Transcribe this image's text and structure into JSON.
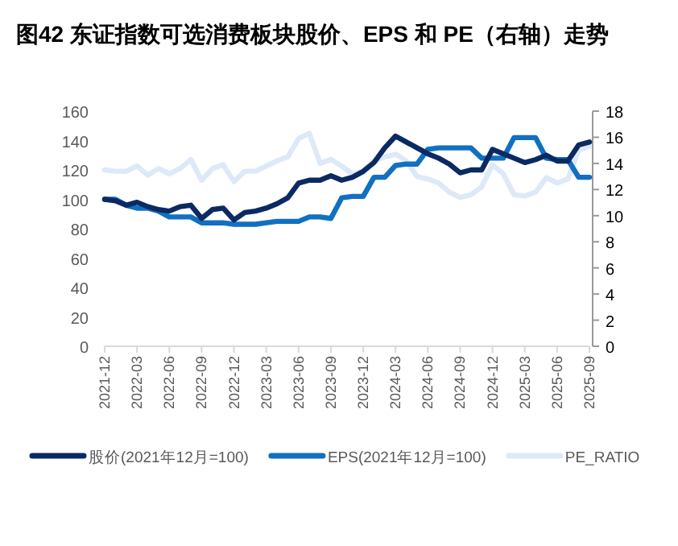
{
  "chart_data": {
    "type": "line",
    "title": "图42 东证指数可选消费板块股价、EPS 和 PE（右轴）走势",
    "categories": [
      "2021-12",
      null,
      null,
      "2022-03",
      null,
      null,
      "2022-06",
      null,
      null,
      "2022-09",
      null,
      null,
      "2022-12",
      null,
      null,
      "2023-03",
      null,
      null,
      "2023-06",
      null,
      null,
      "2023-09",
      null,
      null,
      "2023-12",
      null,
      null,
      "2024-03",
      null,
      null,
      "2024-06",
      null,
      null,
      "2024-09",
      null,
      null,
      "2024-12",
      null,
      null,
      "2025-03",
      null,
      null,
      "2025-06",
      null,
      null,
      "2025-09"
    ],
    "series": [
      {
        "name": "股价(2021年12月=100)",
        "color": "#0b2a63",
        "values": [
          100,
          99,
          96,
          98,
          95,
          93,
          92,
          95,
          96,
          87,
          93,
          94,
          86,
          91,
          92,
          94,
          97,
          101,
          111,
          113,
          113,
          116,
          113,
          115,
          119,
          125,
          135,
          143,
          139,
          135,
          131,
          128,
          124,
          118,
          120,
          120,
          134,
          131,
          128,
          125,
          127,
          130,
          126,
          126,
          137,
          139
        ]
      },
      {
        "name": "EPS(2021年12月=100)",
        "color": "#1170c0",
        "values": [
          100,
          100,
          96,
          94,
          94,
          92,
          88,
          88,
          88,
          84,
          84,
          84,
          83,
          83,
          83,
          84,
          85,
          85,
          85,
          88,
          88,
          87,
          101,
          102,
          102,
          115,
          115,
          123,
          124,
          124,
          134,
          135,
          135,
          135,
          135,
          128,
          128,
          128,
          142,
          142,
          142,
          128,
          127,
          127,
          115,
          115
        ]
      },
      {
        "name": "PE_RATIO",
        "color": "#dde9f8",
        "axis": "y2",
        "values": [
          13.5,
          13.4,
          13.4,
          13.8,
          13.1,
          13.6,
          13.2,
          13.6,
          14.3,
          12.7,
          13.6,
          13.9,
          12.6,
          13.4,
          13.4,
          13.8,
          14.2,
          14.5,
          15.9,
          16.3,
          14.0,
          14.3,
          13.8,
          13.2,
          13.4,
          14.2,
          14.5,
          14.7,
          14.2,
          13.0,
          12.8,
          12.5,
          11.8,
          11.4,
          11.6,
          12.2,
          13.9,
          13.2,
          11.6,
          11.5,
          11.8,
          12.9,
          12.5,
          12.8,
          15.0,
          15.3
        ]
      }
    ],
    "ylim": [
      0,
      160
    ],
    "yticks": [
      0,
      20,
      40,
      60,
      80,
      100,
      120,
      140,
      160
    ],
    "y2lim": [
      0,
      18
    ],
    "y2ticks": [
      0,
      2,
      4,
      6,
      8,
      10,
      12,
      14,
      16,
      18
    ],
    "grid": false,
    "legend": "bottom",
    "line_style": "solid",
    "marker": "none"
  }
}
